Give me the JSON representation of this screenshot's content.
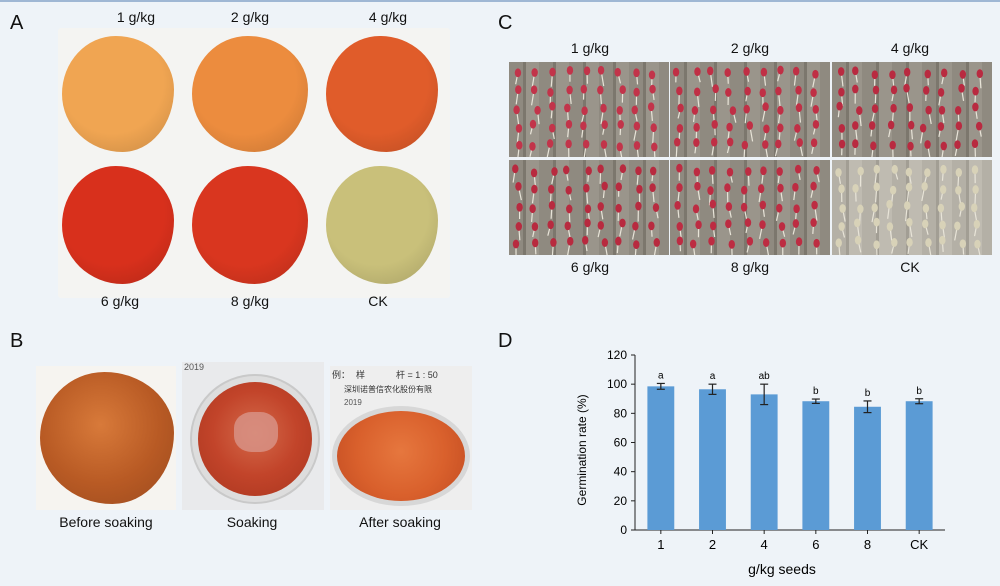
{
  "panels": {
    "A": {
      "letter": "A",
      "labels": [
        "1 g/kg",
        "2 g/kg",
        "4 g/kg",
        "6 g/kg",
        "8 g/kg",
        "CK"
      ],
      "pile_colors": [
        "#f0a552",
        "#ec8c3e",
        "#e05c2a",
        "#d8301c",
        "#d9361f",
        "#c9c07a"
      ]
    },
    "B": {
      "letter": "B",
      "labels": [
        "Before soaking",
        "Soaking",
        "After soaking"
      ],
      "photo_text": [
        "2019",
        "例：",
        "样",
        "杆 = 1 : 50",
        "深圳诺普信农化股份有限",
        "2019"
      ]
    },
    "C": {
      "letter": "C",
      "labels": [
        "1 g/kg",
        "2 g/kg",
        "4 g/kg",
        "6 g/kg",
        "8 g/kg",
        "CK"
      ],
      "seed_colors": [
        "#c2344a",
        "#c02f45",
        "#b92a40",
        "#b82a3f",
        "#bd2c42",
        "#d8d2b8"
      ]
    },
    "D": {
      "letter": "D",
      "chart_data": {
        "type": "bar",
        "categories": [
          "1",
          "2",
          "4",
          "6",
          "8",
          "CK"
        ],
        "values": [
          98.5,
          96.5,
          93.0,
          88.3,
          84.5,
          88.3
        ],
        "errors": [
          2.0,
          3.5,
          7.0,
          1.5,
          4.0,
          1.7
        ],
        "significance": [
          "a",
          "a",
          "ab",
          "b",
          "b",
          "b"
        ],
        "xlabel": "g/kg seeds",
        "ylabel": "Germination rate (%)",
        "ylim": [
          0,
          120
        ],
        "yticks": [
          "0",
          "20",
          "40",
          "60",
          "80",
          "100",
          "120"
        ],
        "bar_color": "#5b9bd5",
        "grid": false
      }
    }
  }
}
